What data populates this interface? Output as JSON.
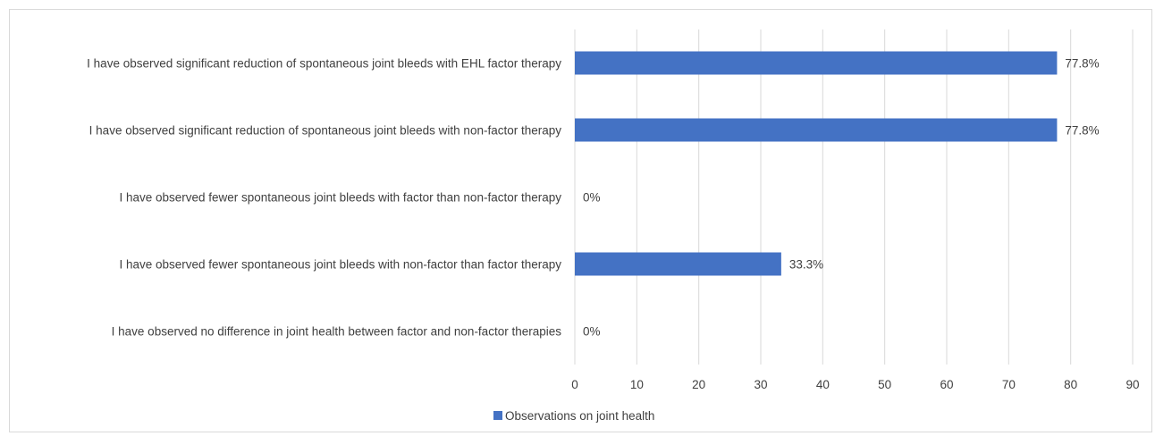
{
  "chart_data": {
    "type": "bar",
    "orientation": "horizontal",
    "categories": [
      "I have observed significant reduction of spontaneous joint bleeds with EHL factor therapy",
      "I have observed significant reduction of spontaneous joint bleeds with non-factor therapy",
      "I have observed fewer spontaneous joint bleeds with factor than non-factor therapy",
      "I have observed fewer spontaneous joint bleeds with non-factor than factor therapy",
      "I have observed no difference in joint health between factor and non-factor therapies"
    ],
    "series": [
      {
        "name": "Observations on joint health",
        "values": [
          77.8,
          77.8,
          0,
          33.3,
          0
        ],
        "data_labels": [
          "77.8%",
          "77.8%",
          "0%",
          "33.3%",
          "0%"
        ],
        "color": "#4472c4"
      }
    ],
    "xlim": [
      0,
      90
    ],
    "xticks": [
      0,
      10,
      20,
      30,
      40,
      50,
      60,
      70,
      80,
      90
    ],
    "grid": "vertical",
    "legend_position": "bottom",
    "gridline_color": "#d9d9d9"
  }
}
